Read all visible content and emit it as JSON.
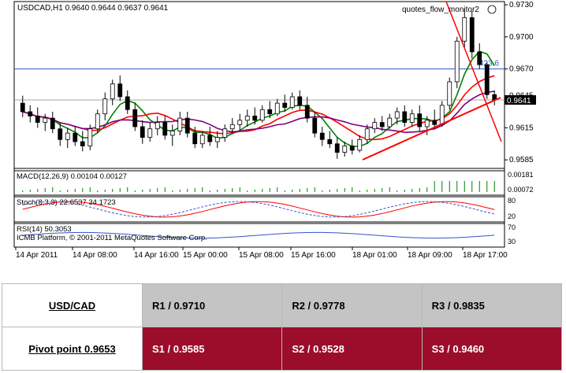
{
  "chart_data": {
    "type": "candlestick",
    "header": "USDCAD,H1  0.9640 0.9644 0.9637 0.9641",
    "watermark": "quotes_flow_monitor2",
    "y_ticks": [
      "0.9730",
      "0.9700",
      "0.9670",
      "0.9645",
      "0.9615",
      "0.9585"
    ],
    "ylim": [
      0.9577,
      0.9733
    ],
    "current_price_label": "0.9641",
    "current_price": 0.9641,
    "hline_value": 0.967,
    "hline_label": "423.6",
    "x_labels": [
      "14 Apr 2011",
      "14 Apr 08:00",
      "14 Apr 16:00",
      "15 Apr 00:00",
      "15 Apr 08:00",
      "15 Apr 16:00",
      "18 Apr 01:00",
      "18 Apr 09:00",
      "18 Apr 17:00"
    ],
    "candles": [
      [
        0.9638,
        0.9645,
        0.9625,
        0.963
      ],
      [
        0.963,
        0.9636,
        0.962,
        0.9626
      ],
      [
        0.9626,
        0.9634,
        0.9615,
        0.962
      ],
      [
        0.962,
        0.9628,
        0.9612,
        0.9624
      ],
      [
        0.9624,
        0.963,
        0.961,
        0.9614
      ],
      [
        0.9614,
        0.962,
        0.9598,
        0.9604
      ],
      [
        0.9604,
        0.9615,
        0.9596,
        0.961
      ],
      [
        0.961,
        0.9616,
        0.9598,
        0.9602
      ],
      [
        0.9602,
        0.9612,
        0.9593,
        0.9598
      ],
      [
        0.9598,
        0.9618,
        0.9594,
        0.9614
      ],
      [
        0.9614,
        0.9632,
        0.961,
        0.9628
      ],
      [
        0.9628,
        0.9648,
        0.9622,
        0.9642
      ],
      [
        0.9642,
        0.966,
        0.9636,
        0.9656
      ],
      [
        0.9656,
        0.9664,
        0.964,
        0.9644
      ],
      [
        0.9644,
        0.965,
        0.9628,
        0.9632
      ],
      [
        0.9632,
        0.9638,
        0.9612,
        0.9616
      ],
      [
        0.9616,
        0.9622,
        0.96,
        0.9606
      ],
      [
        0.9606,
        0.962,
        0.9602,
        0.9614
      ],
      [
        0.9614,
        0.9626,
        0.9608,
        0.962
      ],
      [
        0.962,
        0.9626,
        0.9604,
        0.9608
      ],
      [
        0.9608,
        0.9618,
        0.9598,
        0.9612
      ],
      [
        0.9612,
        0.963,
        0.9608,
        0.9624
      ],
      [
        0.9624,
        0.963,
        0.9606,
        0.961
      ],
      [
        0.961,
        0.9616,
        0.9596,
        0.96
      ],
      [
        0.96,
        0.9612,
        0.9596,
        0.9608
      ],
      [
        0.9608,
        0.9616,
        0.9598,
        0.9602
      ],
      [
        0.9602,
        0.9612,
        0.9596,
        0.9606
      ],
      [
        0.9606,
        0.9618,
        0.9602,
        0.9614
      ],
      [
        0.9614,
        0.9624,
        0.961,
        0.9618
      ],
      [
        0.9618,
        0.9628,
        0.9612,
        0.9622
      ],
      [
        0.9622,
        0.9632,
        0.9616,
        0.9626
      ],
      [
        0.9626,
        0.9634,
        0.9618,
        0.9622
      ],
      [
        0.9622,
        0.9636,
        0.962,
        0.9632
      ],
      [
        0.9632,
        0.964,
        0.9624,
        0.9628
      ],
      [
        0.9628,
        0.9642,
        0.9626,
        0.9638
      ],
      [
        0.9638,
        0.9646,
        0.963,
        0.9634
      ],
      [
        0.9634,
        0.9648,
        0.9632,
        0.9644
      ],
      [
        0.9644,
        0.965,
        0.9632,
        0.9636
      ],
      [
        0.9636,
        0.9644,
        0.962,
        0.9624
      ],
      [
        0.9624,
        0.963,
        0.9606,
        0.961
      ],
      [
        0.961,
        0.9616,
        0.9598,
        0.9604
      ],
      [
        0.9604,
        0.9612,
        0.9596,
        0.96
      ],
      [
        0.96,
        0.9606,
        0.9586,
        0.9592
      ],
      [
        0.9592,
        0.9602,
        0.9588,
        0.9598
      ],
      [
        0.9598,
        0.9604,
        0.959,
        0.9594
      ],
      [
        0.9594,
        0.9608,
        0.9592,
        0.9604
      ],
      [
        0.9604,
        0.9618,
        0.96,
        0.9614
      ],
      [
        0.9614,
        0.9624,
        0.961,
        0.962
      ],
      [
        0.962,
        0.9626,
        0.9612,
        0.9616
      ],
      [
        0.9616,
        0.9628,
        0.9614,
        0.9624
      ],
      [
        0.9624,
        0.9634,
        0.9618,
        0.963
      ],
      [
        0.963,
        0.9636,
        0.9616,
        0.962
      ],
      [
        0.962,
        0.9632,
        0.9616,
        0.9628
      ],
      [
        0.9628,
        0.9636,
        0.9612,
        0.9616
      ],
      [
        0.9616,
        0.9626,
        0.9608,
        0.9622
      ],
      [
        0.9622,
        0.9632,
        0.9614,
        0.9618
      ],
      [
        0.9618,
        0.964,
        0.9616,
        0.9636
      ],
      [
        0.9636,
        0.9662,
        0.9632,
        0.9658
      ],
      [
        0.9658,
        0.97,
        0.9652,
        0.9696
      ],
      [
        0.9696,
        0.9726,
        0.969,
        0.9718
      ],
      [
        0.9718,
        0.9724,
        0.968,
        0.9686
      ],
      [
        0.9686,
        0.9694,
        0.967,
        0.9674
      ],
      [
        0.9674,
        0.9676,
        0.9642,
        0.9646
      ],
      [
        0.9646,
        0.965,
        0.9636,
        0.9641
      ]
    ],
    "indicators": [
      {
        "name": "MACD(12,26,9) 0.00104 0.00127",
        "labels": [
          "0.00181",
          "0.00072"
        ]
      },
      {
        "name": "Stoch(8,3,3) 22.6537 34.1723",
        "labels": [
          "80",
          "20"
        ]
      },
      {
        "name": "RSI(14) 50.3053",
        "labels": [
          "70",
          "30"
        ]
      }
    ],
    "copyright": "ICMB Platform, © 2001-2011 MetaQuotes Software Corp."
  },
  "pivot": {
    "symbol": "USD/CAD",
    "pivot_point": "Pivot point 0.9653",
    "r1": "R1 / 0.9710",
    "r2": "R2 / 0.9778",
    "r3": "R3 / 0.9835",
    "s1": "S1 / 0.9585",
    "s2": "S2 / 0.9528",
    "s3": "S3 / 0.9460"
  },
  "colors": {
    "bull": "#ffffff",
    "bear": "#000000",
    "ma_fast": "#008000",
    "ma_mid": "#ff0000",
    "ma_slow": "#800080",
    "trendline": "#ff0000",
    "hline": "#3355cc",
    "support": "#9b0d2b",
    "resistance": "#c4c4c4"
  }
}
